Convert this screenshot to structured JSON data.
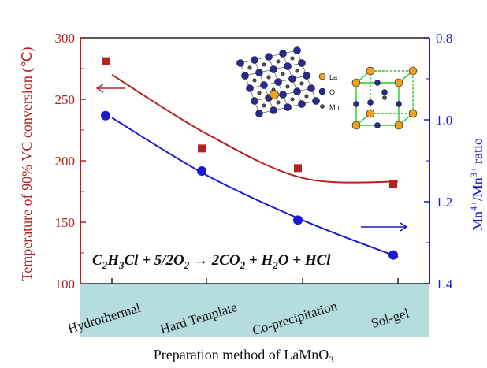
{
  "chart_data": {
    "type": "scatter",
    "categories": [
      "Hydrothermal",
      "Hard Template",
      "Co-precipitation",
      "Sol-gel"
    ],
    "xlabel": "Preparation method of LaMnO",
    "xlabel_sub": "3",
    "ylabel_left": "Temperature of 90% VC conversion (℃)",
    "ylabel_right_parts": [
      "Mn",
      "4+",
      "/Mn",
      "3+",
      " ratio"
    ],
    "y_left": {
      "lim": [
        100,
        300
      ],
      "ticks": [
        "100",
        "150",
        "200",
        "250",
        "300"
      ],
      "color": "#b22222"
    },
    "y_right": {
      "lim": [
        0.8,
        1.4
      ],
      "inverted": true,
      "ticks": [
        "0.8",
        "1.0",
        "1.2",
        "1.4"
      ],
      "color": "#1a1acc"
    },
    "series": [
      {
        "axis": "left",
        "marker": "square",
        "color": "#b22222",
        "values": [
          281,
          210,
          194,
          181
        ]
      },
      {
        "axis": "right",
        "marker": "circle",
        "color": "#1a1acc",
        "values": [
          0.99,
          1.125,
          1.245,
          1.33
        ]
      }
    ],
    "fit_curves": [
      {
        "axis": "left",
        "color": "#b22222",
        "values": [
          270,
          222,
          186,
          183
        ]
      },
      {
        "axis": "right",
        "color": "#1a1acc",
        "values": [
          0.995,
          1.135,
          1.245,
          1.335
        ]
      }
    ],
    "equation": {
      "parts": [
        "C",
        "2",
        "H",
        "3",
        "Cl + 5/2O",
        "2",
        " → 2CO",
        "2",
        " + H",
        "2",
        "O + HCl"
      ]
    },
    "inset_legend": {
      "items": [
        "La",
        "O",
        "Mn"
      ],
      "colors": [
        "#f0a020",
        "#2a2a90",
        "#555555"
      ]
    },
    "band_color": "#b5dde0"
  }
}
